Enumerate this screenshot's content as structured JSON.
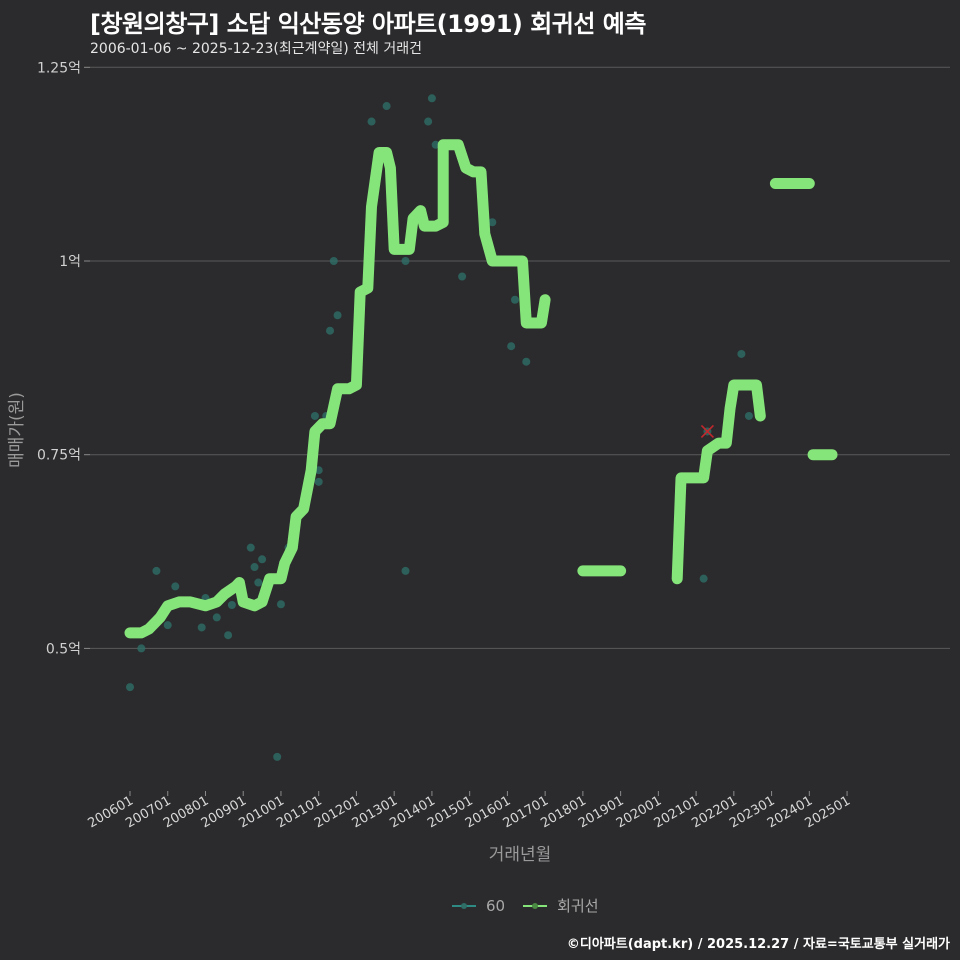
{
  "header": {
    "title": "[창원의창구] 소답 익산동양 아파트(1991) 회귀선 예측",
    "subtitle": "2006-01-06 ~ 2025-12-23(최근계약일) 전체 거래건"
  },
  "axes": {
    "ylabel": "매매가(원)",
    "xlabel": "거래년월",
    "yticks": [
      "1.25억",
      "1억",
      "0.75억",
      "0.5억"
    ],
    "xticks": [
      "200601",
      "200701",
      "200801",
      "200901",
      "201001",
      "201101",
      "201201",
      "201301",
      "201401",
      "201501",
      "201601",
      "201701",
      "201801",
      "201901",
      "202001",
      "202101",
      "202201",
      "202301",
      "202401",
      "202501"
    ]
  },
  "legend": {
    "items": [
      {
        "label": "60",
        "color": "#2e8b83"
      },
      {
        "label": "회귀선",
        "color": "#86e57a"
      }
    ]
  },
  "caption": "©디아파트(dapt.kr) / 2025.12.27 / 자료=국토교통부 실거래가",
  "colors": {
    "background": "#2b2b2d",
    "grid": "#5a5a5a",
    "regression": "#86e57a",
    "points": "#2e6e66",
    "marker_x": "#c0282d"
  },
  "chart_data": {
    "type": "scatter+line",
    "title": "[창원의창구] 소답 익산동양 아파트(1991) 회귀선 예측",
    "subtitle": "2006-01-06 ~ 2025-12-23(최근계약일) 전체 거래건",
    "xlabel": "거래년월",
    "ylabel": "매매가(원)",
    "ylim": [
      0.32,
      1.26
    ],
    "y_unit": "억",
    "grid": true,
    "legend_position": "bottom",
    "series": [
      {
        "name": "60",
        "type": "scatter",
        "points": [
          [
            2006.0,
            0.45
          ],
          [
            2006.3,
            0.5
          ],
          [
            2006.7,
            0.6
          ],
          [
            2007.0,
            0.53
          ],
          [
            2007.2,
            0.58
          ],
          [
            2007.9,
            0.527
          ],
          [
            2008.0,
            0.565
          ],
          [
            2008.3,
            0.54
          ],
          [
            2008.6,
            0.517
          ],
          [
            2008.7,
            0.556
          ],
          [
            2009.2,
            0.63
          ],
          [
            2009.3,
            0.605
          ],
          [
            2009.4,
            0.585
          ],
          [
            2009.5,
            0.615
          ],
          [
            2009.6,
            0.575
          ],
          [
            2009.9,
            0.36
          ],
          [
            2010.0,
            0.557
          ],
          [
            2010.2,
            0.63
          ],
          [
            2010.9,
            0.8
          ],
          [
            2011.0,
            0.73
          ],
          [
            2011.0,
            0.715
          ],
          [
            2011.2,
            0.8
          ],
          [
            2011.3,
            0.91
          ],
          [
            2011.4,
            1.0
          ],
          [
            2011.5,
            0.93
          ],
          [
            2012.4,
            1.18
          ],
          [
            2012.8,
            1.2
          ],
          [
            2013.3,
            1.0
          ],
          [
            2013.3,
            0.6
          ],
          [
            2013.9,
            1.18
          ],
          [
            2014.0,
            1.21
          ],
          [
            2014.1,
            1.15
          ],
          [
            2014.8,
            0.98
          ],
          [
            2015.6,
            1.05
          ],
          [
            2016.1,
            0.89
          ],
          [
            2016.2,
            0.95
          ],
          [
            2016.5,
            0.87
          ],
          [
            2021.2,
            0.59
          ],
          [
            2021.3,
            0.78
          ],
          [
            2022.2,
            0.88
          ],
          [
            2022.4,
            0.8
          ]
        ]
      },
      {
        "name": "회귀선",
        "type": "line",
        "segments": [
          [
            [
              2006.0,
              0.52
            ],
            [
              2006.3,
              0.52
            ],
            [
              2006.5,
              0.525
            ],
            [
              2006.7,
              0.535
            ],
            [
              2006.8,
              0.54
            ],
            [
              2007.0,
              0.555
            ],
            [
              2007.3,
              0.56
            ],
            [
              2007.6,
              0.56
            ],
            [
              2008.0,
              0.555
            ],
            [
              2008.3,
              0.56
            ],
            [
              2008.5,
              0.57
            ],
            [
              2008.8,
              0.58
            ],
            [
              2008.9,
              0.585
            ],
            [
              2009.0,
              0.56
            ],
            [
              2009.3,
              0.555
            ],
            [
              2009.5,
              0.56
            ],
            [
              2009.7,
              0.59
            ],
            [
              2010.0,
              0.59
            ],
            [
              2010.1,
              0.61
            ],
            [
              2010.3,
              0.63
            ],
            [
              2010.4,
              0.67
            ],
            [
              2010.6,
              0.68
            ],
            [
              2010.8,
              0.73
            ],
            [
              2010.9,
              0.78
            ],
            [
              2011.1,
              0.79
            ],
            [
              2011.3,
              0.79
            ],
            [
              2011.5,
              0.835
            ],
            [
              2011.8,
              0.835
            ],
            [
              2012.0,
              0.84
            ],
            [
              2012.1,
              0.96
            ],
            [
              2012.3,
              0.965
            ],
            [
              2012.4,
              1.07
            ],
            [
              2012.6,
              1.14
            ],
            [
              2012.8,
              1.14
            ],
            [
              2012.9,
              1.12
            ],
            [
              2013.0,
              1.015
            ],
            [
              2013.4,
              1.015
            ],
            [
              2013.5,
              1.055
            ],
            [
              2013.7,
              1.065
            ],
            [
              2013.8,
              1.045
            ],
            [
              2014.1,
              1.045
            ],
            [
              2014.3,
              1.05
            ],
            [
              2014.3,
              1.15
            ],
            [
              2014.7,
              1.15
            ],
            [
              2014.9,
              1.12
            ],
            [
              2015.1,
              1.115
            ],
            [
              2015.3,
              1.115
            ],
            [
              2015.4,
              1.035
            ],
            [
              2015.6,
              1.0
            ],
            [
              2016.4,
              1.0
            ],
            [
              2016.5,
              0.92
            ],
            [
              2016.9,
              0.92
            ],
            [
              2017.0,
              0.95
            ]
          ],
          [
            [
              2018.0,
              0.6
            ],
            [
              2019.0,
              0.6
            ]
          ],
          [
            [
              2020.5,
              0.59
            ],
            [
              2020.6,
              0.72
            ],
            [
              2021.2,
              0.72
            ],
            [
              2021.3,
              0.755
            ],
            [
              2021.6,
              0.765
            ],
            [
              2021.8,
              0.765
            ],
            [
              2021.9,
              0.81
            ],
            [
              2022.0,
              0.84
            ],
            [
              2022.6,
              0.84
            ],
            [
              2022.7,
              0.8
            ]
          ],
          [
            [
              2023.1,
              1.1
            ],
            [
              2024.0,
              1.1
            ]
          ],
          [
            [
              2024.1,
              0.75
            ],
            [
              2024.6,
              0.75
            ]
          ]
        ]
      }
    ],
    "annotations": [
      {
        "type": "x-marker",
        "x": 2021.3,
        "y": 0.78,
        "color": "#c0282d"
      }
    ]
  }
}
